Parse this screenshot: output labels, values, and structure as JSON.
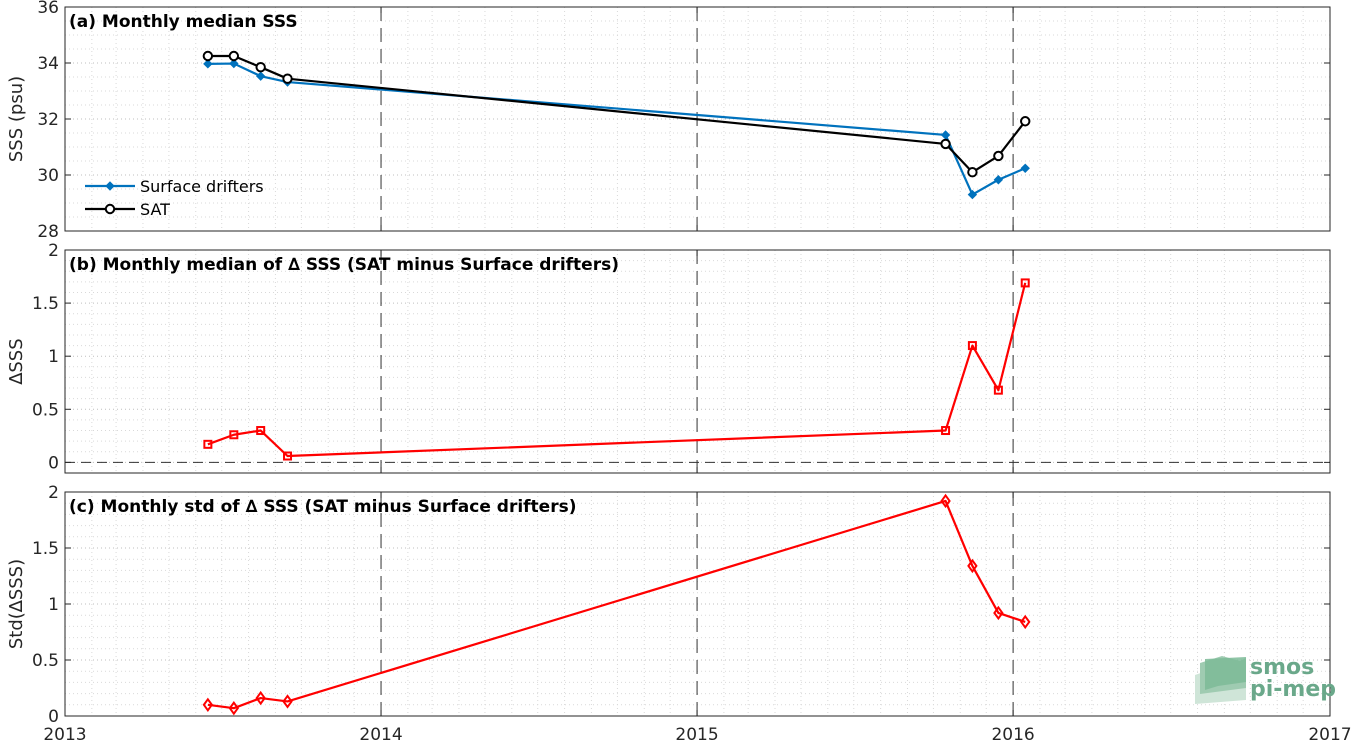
{
  "chart_data": [
    {
      "type": "line",
      "title": "(a) Monthly median SSS",
      "ylabel": "SSS (psu)",
      "xlim": [
        "2013-01-01",
        "2017-01-01"
      ],
      "ylim": [
        28,
        36
      ],
      "yticks": [
        "28",
        "30",
        "32",
        "34",
        "36"
      ],
      "legend": "bottom-left",
      "grid": true,
      "series": [
        {
          "name": "Surface drifters",
          "color": "#0072bd",
          "marker": "diamond-filled",
          "x": [
            "2013-06-15",
            "2013-07-15",
            "2013-08-15",
            "2013-09-15",
            "2015-10-15",
            "2015-11-15",
            "2015-12-15",
            "2016-01-15"
          ],
          "values": [
            33.97,
            33.98,
            33.53,
            33.32,
            31.43,
            29.3,
            29.83,
            30.24
          ]
        },
        {
          "name": "SAT",
          "color": "#000000",
          "marker": "circle-open",
          "x": [
            "2013-06-15",
            "2013-07-15",
            "2013-08-15",
            "2013-09-15",
            "2015-10-15",
            "2015-11-15",
            "2015-12-15",
            "2016-01-15"
          ],
          "values": [
            34.25,
            34.25,
            33.85,
            33.44,
            31.11,
            30.1,
            30.68,
            31.92
          ]
        }
      ]
    },
    {
      "type": "line",
      "title": "(b) Monthly median of ∆ SSS (SAT minus Surface drifters)",
      "ylabel": "∆SSS",
      "xlim": [
        "2013-01-01",
        "2017-01-01"
      ],
      "ylim": [
        -0.1,
        2
      ],
      "yticks": [
        "0",
        "0.5",
        "1",
        "1.5",
        "2"
      ],
      "grid": true,
      "reference_line": 0,
      "series": [
        {
          "color": "#ff0000",
          "marker": "square-open",
          "x": [
            "2013-06-15",
            "2013-07-15",
            "2013-08-15",
            "2013-09-15",
            "2015-10-15",
            "2015-11-15",
            "2015-12-15",
            "2016-01-15"
          ],
          "values": [
            0.17,
            0.26,
            0.3,
            0.06,
            0.3,
            1.1,
            0.68,
            1.69
          ]
        }
      ]
    },
    {
      "type": "line",
      "title": "(c) Monthly std of ∆ SSS (SAT minus Surface drifters)",
      "ylabel": "Std(∆SSS)",
      "xlim": [
        "2013-01-01",
        "2017-01-01"
      ],
      "ylim": [
        0,
        2
      ],
      "yticks": [
        "0",
        "0.5",
        "1",
        "1.5",
        "2"
      ],
      "xticks": [
        "2013",
        "2014",
        "2015",
        "2016",
        "2017"
      ],
      "grid": true,
      "series": [
        {
          "color": "#ff0000",
          "marker": "diamond-open",
          "x": [
            "2013-06-15",
            "2013-07-15",
            "2013-08-15",
            "2013-09-15",
            "2015-10-15",
            "2015-11-15",
            "2015-12-15",
            "2016-01-15"
          ],
          "values": [
            0.1,
            0.07,
            0.16,
            0.13,
            1.92,
            1.34,
            0.92,
            0.84
          ]
        }
      ]
    }
  ],
  "vertical_markers": [
    "2014-01-01",
    "2015-01-01",
    "2016-01-01"
  ],
  "logo": {
    "line1": "smos",
    "line2": "pi-mep",
    "color": "#6aa88a"
  }
}
